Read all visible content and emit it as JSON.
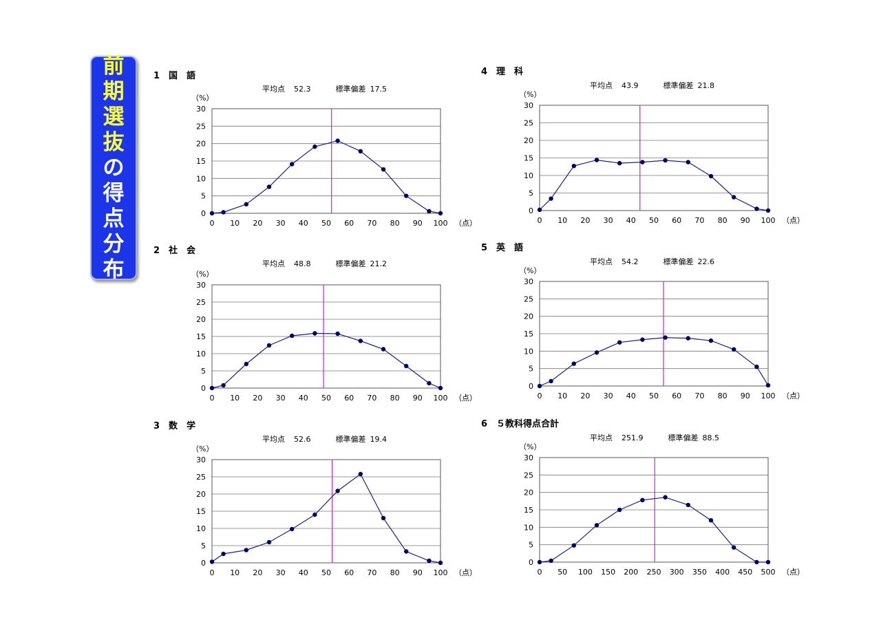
{
  "banner": {
    "title_chars": [
      "前",
      "期",
      "選",
      "抜",
      "の",
      "得",
      "点",
      "分",
      "布"
    ],
    "bg_color": "#1d35e9",
    "highlight_color": "#ffff33",
    "text_color": "#ffffff"
  },
  "sections": [
    {
      "heading": "1　国　語",
      "mean_label": "平均点",
      "mean_value": "52.3",
      "sd_label": "標準偏差",
      "sd_value": "17.5"
    },
    {
      "heading": "2　社　会",
      "mean_label": "平均点",
      "mean_value": "48.8",
      "sd_label": "標準偏差",
      "sd_value": "21.2"
    },
    {
      "heading": "3　数　学",
      "mean_label": "平均点",
      "mean_value": "52.6",
      "sd_label": "標準偏差",
      "sd_value": "19.4"
    },
    {
      "heading": "4　理　科",
      "mean_label": "平均点",
      "mean_value": "43.9",
      "sd_label": "標準偏差",
      "sd_value": "21.8"
    },
    {
      "heading": "5　英　語",
      "mean_label": "平均点",
      "mean_value": "54.2",
      "sd_label": "標準偏差",
      "sd_value": "22.6"
    },
    {
      "heading": "6　５教科得点合計",
      "mean_label": "平均点",
      "mean_value": "251.9",
      "sd_label": "標準偏差",
      "sd_value": "88.5"
    }
  ],
  "chart_data": [
    {
      "type": "line",
      "ylabel": "（%）",
      "xlabel": "（点）",
      "xlim": [
        0,
        100
      ],
      "ylim": [
        0,
        30
      ],
      "xticks": [
        0,
        10,
        20,
        30,
        40,
        50,
        60,
        70,
        80,
        90,
        100
      ],
      "yticks": [
        0,
        5,
        10,
        15,
        20,
        25,
        30
      ],
      "mean_line": 52.3,
      "grid": true,
      "x": [
        0,
        5,
        15,
        25,
        35,
        45,
        55,
        65,
        75,
        85,
        95,
        100
      ],
      "y": [
        0,
        0.3,
        2.6,
        7.6,
        14.1,
        19.1,
        20.8,
        17.8,
        12.6,
        5.0,
        0.6,
        0
      ]
    },
    {
      "type": "line",
      "ylabel": "（%）",
      "xlabel": "（点）",
      "xlim": [
        0,
        100
      ],
      "ylim": [
        0,
        30
      ],
      "xticks": [
        0,
        10,
        20,
        30,
        40,
        50,
        60,
        70,
        80,
        90,
        100
      ],
      "yticks": [
        0,
        5,
        10,
        15,
        20,
        25,
        30
      ],
      "mean_line": 48.8,
      "grid": true,
      "x": [
        0,
        5,
        15,
        25,
        35,
        45,
        55,
        65,
        75,
        85,
        95,
        100
      ],
      "y": [
        0,
        0.8,
        7.0,
        12.4,
        15.2,
        15.9,
        15.8,
        13.7,
        11.3,
        6.4,
        1.4,
        0
      ]
    },
    {
      "type": "line",
      "ylabel": "（%）",
      "xlabel": "（点）",
      "xlim": [
        0,
        100
      ],
      "ylim": [
        0,
        30
      ],
      "xticks": [
        0,
        10,
        20,
        30,
        40,
        50,
        60,
        70,
        80,
        90,
        100
      ],
      "yticks": [
        0,
        5,
        10,
        15,
        20,
        25,
        30
      ],
      "mean_line": 52.6,
      "grid": true,
      "x": [
        0,
        5,
        15,
        25,
        35,
        45,
        55,
        65,
        75,
        85,
        95,
        100
      ],
      "y": [
        0.3,
        2.6,
        3.7,
        6.0,
        9.8,
        14.0,
        20.9,
        25.8,
        13.0,
        3.3,
        0.6,
        0
      ]
    },
    {
      "type": "line",
      "ylabel": "（%）",
      "xlabel": "（点）",
      "xlim": [
        0,
        100
      ],
      "ylim": [
        0,
        30
      ],
      "xticks": [
        0,
        10,
        20,
        30,
        40,
        50,
        60,
        70,
        80,
        90,
        100
      ],
      "yticks": [
        0,
        5,
        10,
        15,
        20,
        25,
        30
      ],
      "mean_line": 43.9,
      "grid": true,
      "x": [
        0,
        5,
        15,
        25,
        35,
        45,
        55,
        65,
        75,
        85,
        95,
        100
      ],
      "y": [
        0.2,
        3.4,
        12.7,
        14.4,
        13.5,
        13.8,
        14.3,
        13.8,
        9.8,
        3.8,
        0.5,
        0
      ]
    },
    {
      "type": "line",
      "ylabel": "（%）",
      "xlabel": "（点）",
      "xlim": [
        0,
        100
      ],
      "ylim": [
        0,
        30
      ],
      "xticks": [
        0,
        10,
        20,
        30,
        40,
        50,
        60,
        70,
        80,
        90,
        100
      ],
      "yticks": [
        0,
        5,
        10,
        15,
        20,
        25,
        30
      ],
      "mean_line": 54.2,
      "grid": true,
      "x": [
        0,
        5,
        15,
        25,
        35,
        45,
        55,
        65,
        75,
        85,
        95,
        100
      ],
      "y": [
        0,
        1.4,
        6.4,
        9.6,
        12.5,
        13.3,
        13.9,
        13.7,
        13.0,
        10.5,
        5.5,
        0.2
      ]
    },
    {
      "type": "line",
      "ylabel": "（%）",
      "xlabel": "（点）",
      "xlim": [
        0,
        500
      ],
      "ylim": [
        0,
        30
      ],
      "xticks": [
        0,
        50,
        100,
        150,
        200,
        250,
        300,
        350,
        400,
        450,
        500
      ],
      "yticks": [
        0,
        5,
        10,
        15,
        20,
        25,
        30
      ],
      "mean_line": 251.9,
      "grid": true,
      "x": [
        0,
        25,
        75,
        125,
        175,
        225,
        275,
        325,
        375,
        425,
        475,
        500
      ],
      "y": [
        0,
        0.4,
        4.8,
        10.6,
        15.0,
        17.8,
        18.6,
        16.4,
        12.0,
        4.2,
        0,
        0
      ]
    }
  ],
  "colors": {
    "series_line": "#1f1f78",
    "marker": "#000066",
    "mean_line": "#cc33cc",
    "gridline": "#777777",
    "frame": "#555555"
  }
}
